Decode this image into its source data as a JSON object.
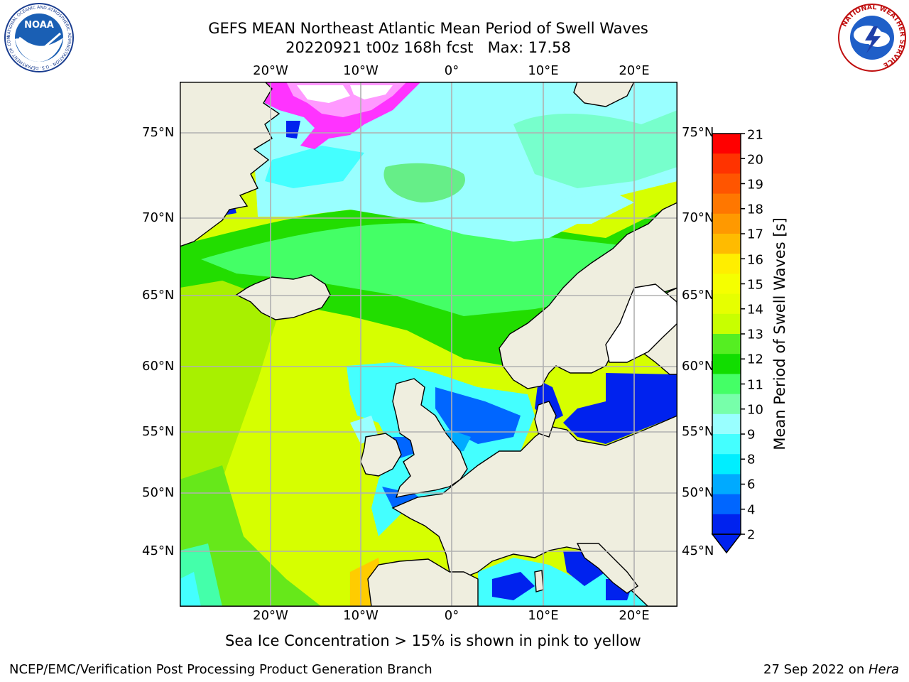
{
  "header": {
    "title_line1": "GEFS MEAN Northeast Atlantic Mean Period of Swell Waves",
    "title_line2": "20220921 t00z 168h fcst   Max: 17.58"
  },
  "map": {
    "lon_labels": [
      "20°W",
      "10°W",
      "0°",
      "10°E",
      "20°E"
    ],
    "lat_labels": [
      "75°N",
      "70°N",
      "65°N",
      "60°N",
      "55°N",
      "50°N",
      "45°N"
    ]
  },
  "colorbar": {
    "title": "Mean Period of Swell Waves [s]",
    "ticks": [
      "21",
      "20",
      "19",
      "18",
      "17",
      "16",
      "15",
      "14",
      "13",
      "12",
      "11",
      "10",
      "9",
      "8",
      "6",
      "4",
      "2"
    ],
    "colors": [
      "#ff0000",
      "#ff3300",
      "#ff5500",
      "#ff7700",
      "#ff9900",
      "#ffbb00",
      "#ffee00",
      "#f5ff00",
      "#e6ff00",
      "#c8ff00",
      "#55ee22",
      "#11dd00",
      "#44ff66",
      "#77ffaa",
      "#99ffff",
      "#44ffff",
      "#00eeff",
      "#00aaff",
      "#0066ff",
      "#0022ee"
    ]
  },
  "footer": {
    "note": "Sea Ice Concentration > 15% is shown in pink to yellow",
    "credit": "NCEP/EMC/Verification Post Processing Product Generation Branch",
    "date_prefix": "27 Sep 2022 on ",
    "date_machine": "Hera"
  },
  "logos": {
    "left": "NOAA",
    "left_ring": "NATIONAL OCEANIC AND ATMOSPHERIC ADMINISTRATION · U.S. DEPARTMENT OF COMMERCE",
    "right_ring": "NATIONAL WEATHER SERVICE"
  }
}
